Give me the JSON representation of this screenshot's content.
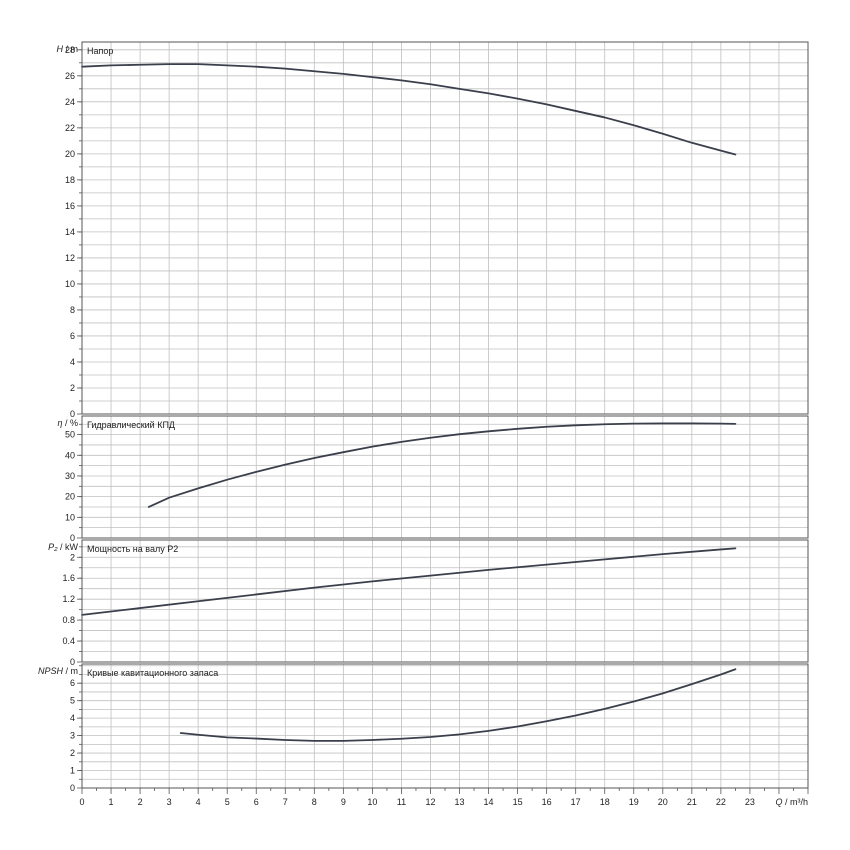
{
  "chart_data": {
    "type": "line",
    "x": {
      "label_italic": "Q",
      "label_unit": " / m³/h",
      "range": [
        0,
        25
      ],
      "ticks": [
        0,
        1,
        2,
        3,
        4,
        5,
        6,
        7,
        8,
        9,
        10,
        11,
        12,
        13,
        14,
        15,
        16,
        17,
        18,
        19,
        20,
        21,
        22,
        23
      ]
    },
    "colors": {
      "curve": "#3a3f4b",
      "grid": "#c0c0c0",
      "frame": "#555555"
    },
    "panels": [
      {
        "id": "head",
        "title": "Напор",
        "ylabel_italic": "H",
        "ylabel_unit": " / m",
        "ylim": [
          0,
          28.6
        ],
        "yticks": [
          "0",
          "2",
          "4",
          "6",
          "8",
          "10",
          "12",
          "14",
          "16",
          "18",
          "20",
          "22",
          "24",
          "26",
          "28"
        ],
        "ytick_values": [
          0,
          2,
          4,
          6,
          8,
          10,
          12,
          14,
          16,
          18,
          20,
          22,
          24,
          26,
          28
        ],
        "points": [
          [
            0,
            26.7
          ],
          [
            1,
            26.8
          ],
          [
            2,
            26.85
          ],
          [
            3,
            26.9
          ],
          [
            4,
            26.9
          ],
          [
            5,
            26.8
          ],
          [
            6,
            26.7
          ],
          [
            7,
            26.55
          ],
          [
            8,
            26.35
          ],
          [
            9,
            26.15
          ],
          [
            10,
            25.9
          ],
          [
            11,
            25.65
          ],
          [
            12,
            25.35
          ],
          [
            13,
            25.0
          ],
          [
            14,
            24.65
          ],
          [
            15,
            24.25
          ],
          [
            16,
            23.8
          ],
          [
            17,
            23.3
          ],
          [
            18,
            22.8
          ],
          [
            19,
            22.2
          ],
          [
            20,
            21.55
          ],
          [
            21,
            20.85
          ],
          [
            22,
            20.25
          ],
          [
            22.5,
            19.95
          ]
        ]
      },
      {
        "id": "eff",
        "title": "Гидравлический КПД",
        "ylabel_italic": "η",
        "ylabel_unit": " / %",
        "ylim": [
          0,
          59
        ],
        "yticks": [
          "0",
          "10",
          "20",
          "30",
          "40",
          "50"
        ],
        "ytick_values": [
          0,
          10,
          20,
          30,
          40,
          50
        ],
        "points": [
          [
            2.3,
            15
          ],
          [
            3,
            19.5
          ],
          [
            4,
            24
          ],
          [
            5,
            28.2
          ],
          [
            6,
            32
          ],
          [
            7,
            35.5
          ],
          [
            8,
            38.7
          ],
          [
            9,
            41.5
          ],
          [
            10,
            44.2
          ],
          [
            11,
            46.5
          ],
          [
            12,
            48.5
          ],
          [
            13,
            50.2
          ],
          [
            14,
            51.6
          ],
          [
            15,
            52.8
          ],
          [
            16,
            53.8
          ],
          [
            17,
            54.5
          ],
          [
            18,
            55
          ],
          [
            19,
            55.3
          ],
          [
            20,
            55.4
          ],
          [
            21,
            55.4
          ],
          [
            22,
            55.3
          ],
          [
            22.5,
            55.2
          ]
        ]
      },
      {
        "id": "power",
        "title": "Мощность на валу P2",
        "ylabel_italic": "P₂",
        "ylabel_unit": " / kW",
        "ylim": [
          0,
          2.33
        ],
        "yticks": [
          "0",
          "0.4",
          "0.8",
          "1.2",
          "1.6",
          "2"
        ],
        "ytick_values": [
          0,
          0.4,
          0.8,
          1.2,
          1.6,
          2.0
        ],
        "points": [
          [
            0,
            0.9
          ],
          [
            2,
            1.03
          ],
          [
            4,
            1.16
          ],
          [
            6,
            1.29
          ],
          [
            8,
            1.42
          ],
          [
            10,
            1.54
          ],
          [
            12,
            1.65
          ],
          [
            14,
            1.76
          ],
          [
            16,
            1.86
          ],
          [
            18,
            1.96
          ],
          [
            20,
            2.06
          ],
          [
            22,
            2.15
          ],
          [
            22.5,
            2.17
          ]
        ]
      },
      {
        "id": "npsh",
        "title": "Кривые кавитационного запаса",
        "ylabel_italic": "NPSH",
        "ylabel_unit": " / m",
        "ylim": [
          0,
          7.1
        ],
        "yticks": [
          "0",
          "1",
          "2",
          "3",
          "4",
          "5",
          "6"
        ],
        "ytick_values": [
          0,
          1,
          2,
          3,
          4,
          5,
          6
        ],
        "points": [
          [
            3.4,
            3.15
          ],
          [
            4,
            3.05
          ],
          [
            5,
            2.9
          ],
          [
            6,
            2.83
          ],
          [
            7,
            2.75
          ],
          [
            8,
            2.7
          ],
          [
            9,
            2.7
          ],
          [
            10,
            2.75
          ],
          [
            11,
            2.82
          ],
          [
            12,
            2.92
          ],
          [
            13,
            3.07
          ],
          [
            14,
            3.27
          ],
          [
            15,
            3.52
          ],
          [
            16,
            3.82
          ],
          [
            17,
            4.15
          ],
          [
            18,
            4.53
          ],
          [
            19,
            4.95
          ],
          [
            20,
            5.42
          ],
          [
            21,
            5.95
          ],
          [
            22,
            6.5
          ],
          [
            22.5,
            6.8
          ]
        ]
      }
    ]
  }
}
